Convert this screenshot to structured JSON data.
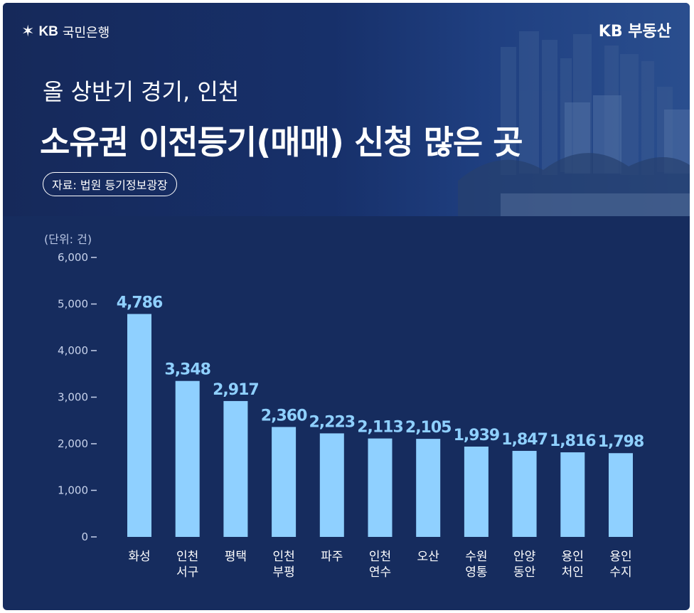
{
  "header": {
    "logo_left": "KB 국민은행",
    "logo_left_kb": "KB",
    "logo_left_name": "국민은행",
    "logo_right": "KB 부동산",
    "subtitle": "올 상반기 경기, 인천",
    "title": "소유권 이전등기(매매) 신청 많은 곳",
    "source": "자료: 법원 등기정보광장"
  },
  "chart_data": {
    "type": "bar",
    "unit_label": "(단위: 건)",
    "categories": [
      [
        "화성"
      ],
      [
        "인천",
        "서구"
      ],
      [
        "평택"
      ],
      [
        "인천",
        "부평"
      ],
      [
        "파주"
      ],
      [
        "인천",
        "연수"
      ],
      [
        "오산"
      ],
      [
        "수원",
        "영통"
      ],
      [
        "안양",
        "동안"
      ],
      [
        "용인",
        "처인"
      ],
      [
        "용인",
        "수지"
      ]
    ],
    "values": [
      4786,
      3348,
      2917,
      2360,
      2223,
      2113,
      2105,
      1939,
      1847,
      1816,
      1798
    ],
    "value_labels": [
      "4,786",
      "3,348",
      "2,917",
      "2,360",
      "2,223",
      "2,113",
      "2,105",
      "1,939",
      "1,847",
      "1,816",
      "1,798"
    ],
    "yticks": [
      0,
      1000,
      2000,
      3000,
      4000,
      5000,
      6000
    ],
    "ytick_labels": [
      "0",
      "1,000",
      "2,000",
      "3,000",
      "4,000",
      "5,000",
      "6,000"
    ],
    "ylim": [
      0,
      6000
    ],
    "grid": false,
    "colors": {
      "bar": "#8fd0ff",
      "value_label": "#8fd0ff",
      "background": "#162c5e"
    }
  }
}
